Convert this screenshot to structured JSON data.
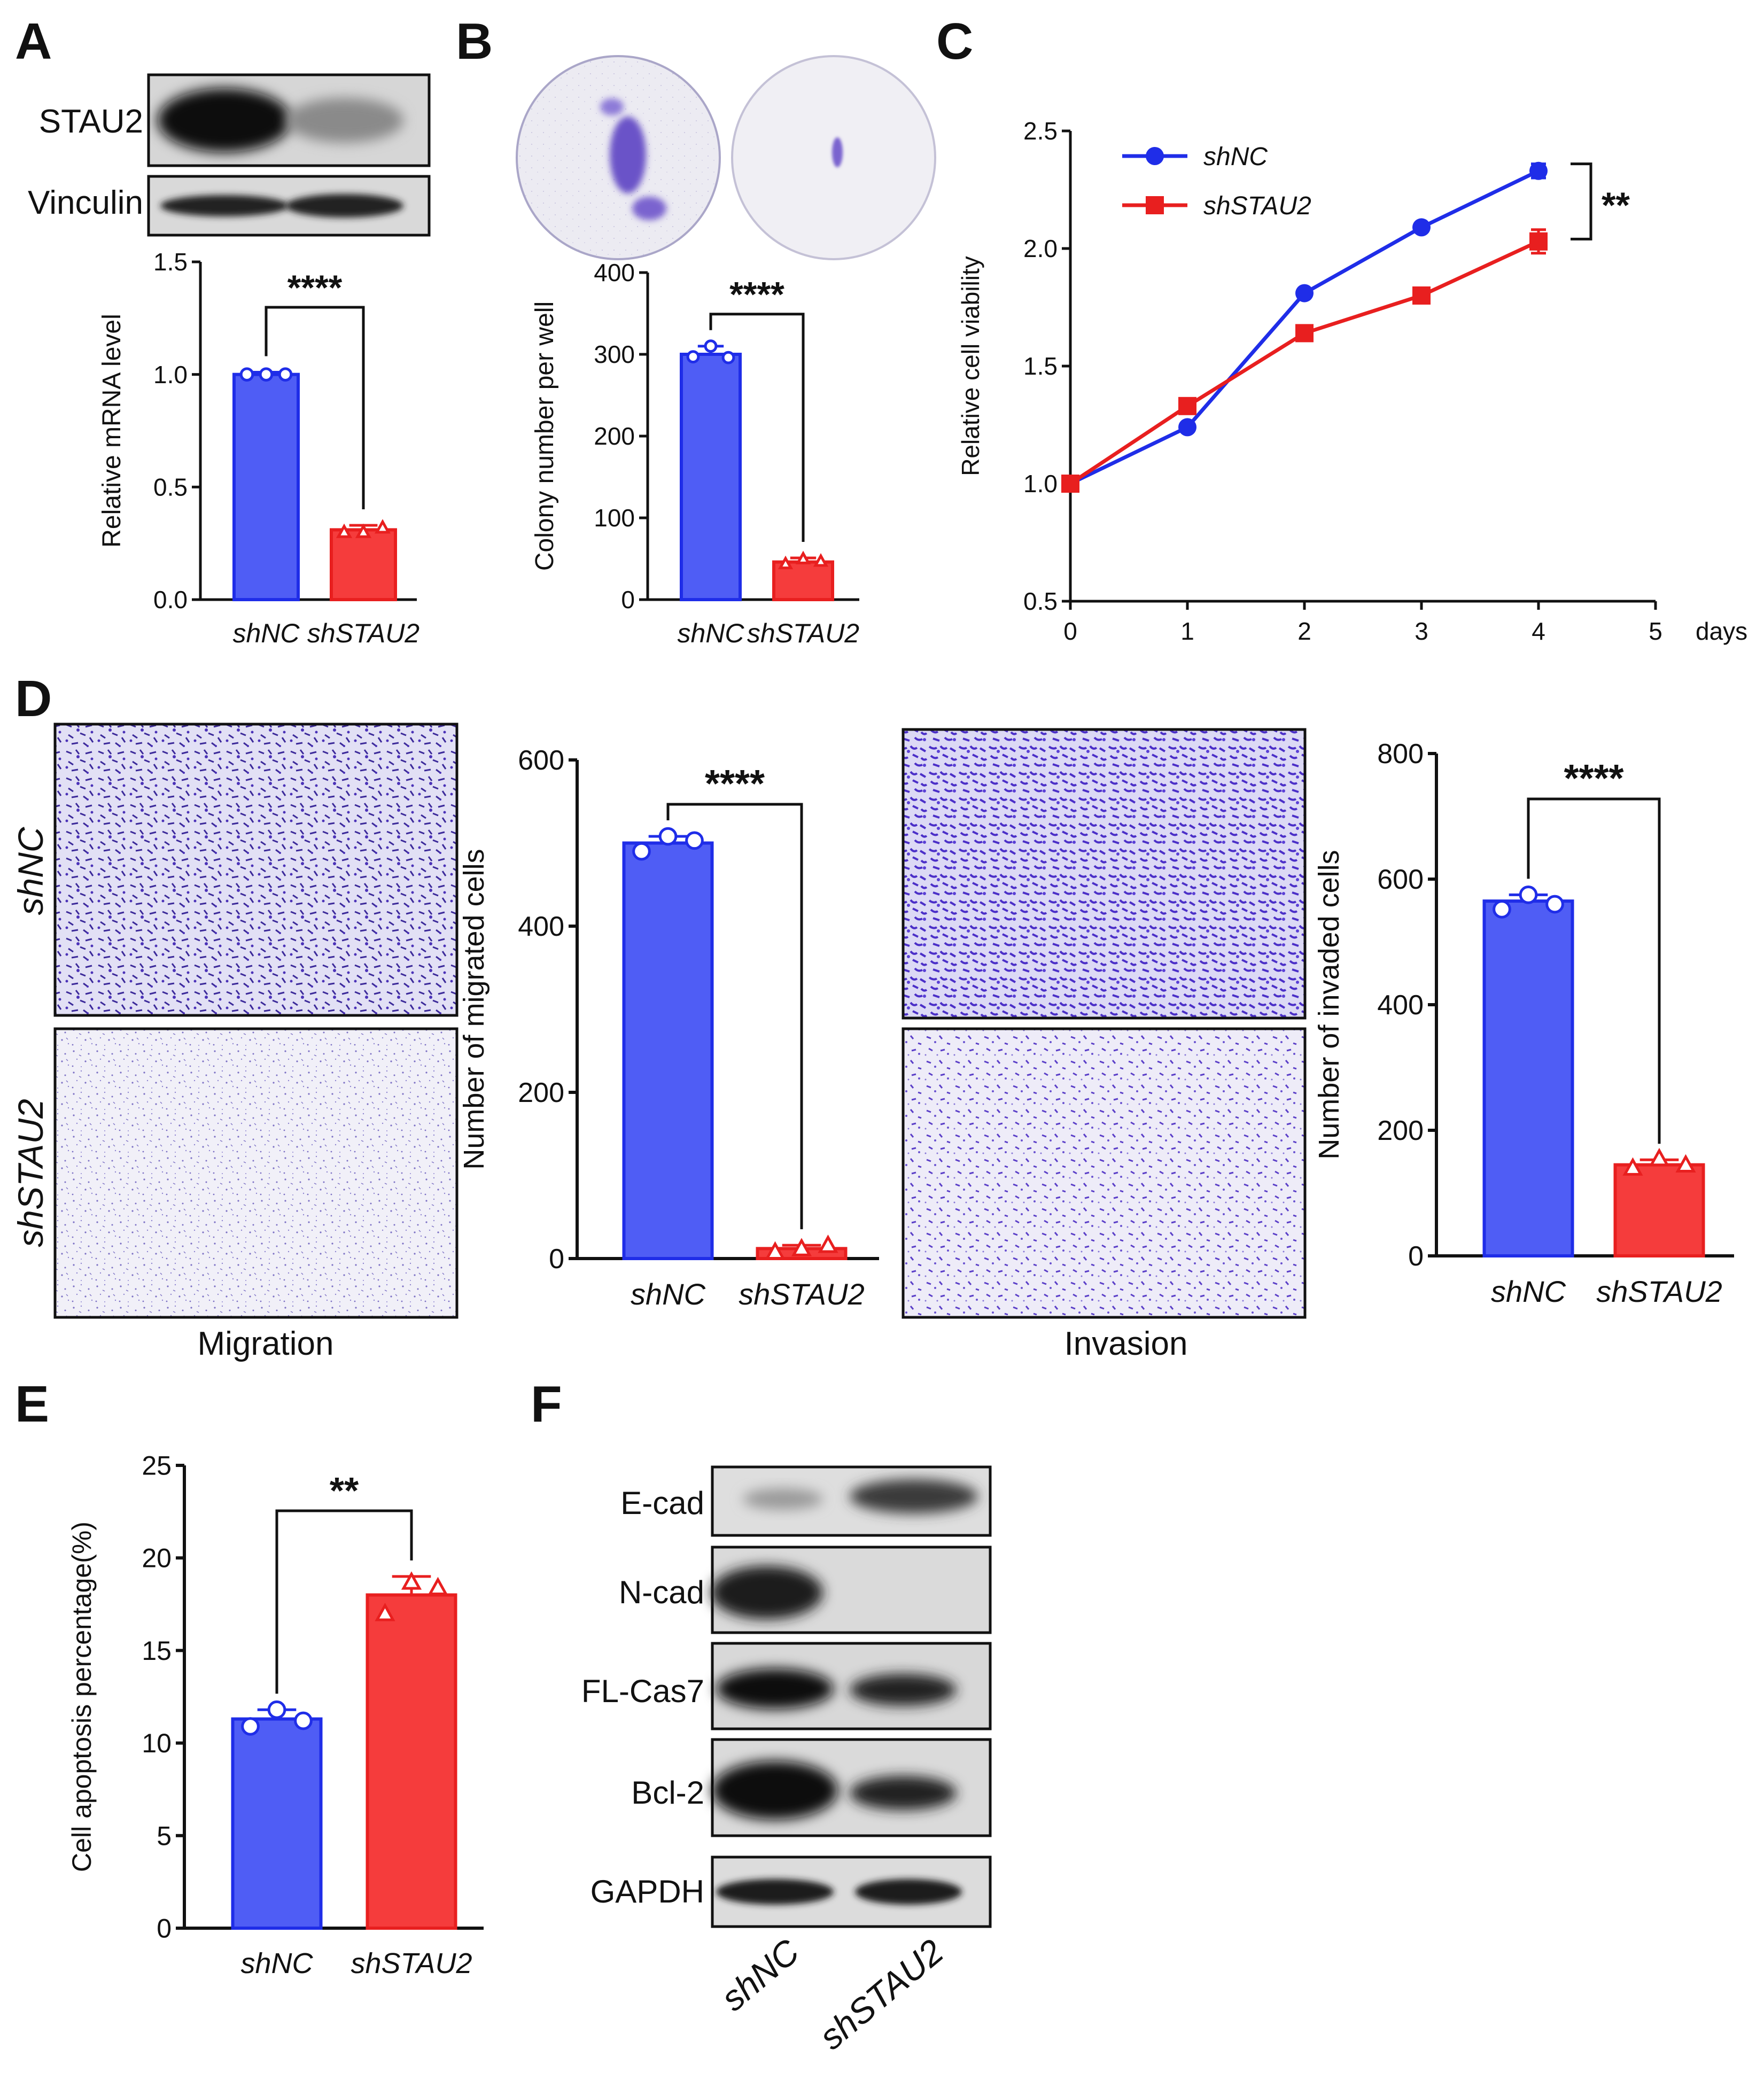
{
  "colors": {
    "shNC": "#4f5df5",
    "shSTAU2": "#f53c3c",
    "shNC_line": "#1f2de8",
    "shSTAU2_line": "#e81f1f",
    "stain": "#5a3fc0"
  },
  "panels": {
    "A": {
      "letter": "A",
      "blot_labels": [
        "STAU2",
        "Vinculin"
      ]
    },
    "B": {
      "letter": "B"
    },
    "C": {
      "letter": "C"
    },
    "D": {
      "letter": "D",
      "row_labels": [
        "shNC",
        "shSTAU2"
      ],
      "image_labels": [
        "Migration",
        "Invasion"
      ]
    },
    "E": {
      "letter": "E"
    },
    "F": {
      "letter": "F",
      "blot_labels": [
        "E-cad",
        "N-cad",
        "FL-Cas7",
        "Bcl-2",
        "GAPDH"
      ],
      "lane_labels": [
        "shNC",
        "shSTAU2"
      ]
    }
  },
  "chart_data": [
    {
      "id": "A",
      "type": "bar",
      "ylabel": "Relative mRNA level",
      "categories": [
        "shNC",
        "shSTAU2"
      ],
      "values": [
        1.0,
        0.31
      ],
      "errors": [
        0.01,
        0.02
      ],
      "points": [
        [
          1.0,
          1.0,
          1.0
        ],
        [
          0.3,
          0.3,
          0.32
        ]
      ],
      "markers": [
        "circle",
        "triangle"
      ],
      "ylim": [
        0,
        1.5
      ],
      "yticks": [
        "0.0",
        "0.5",
        "1.0",
        "1.5"
      ],
      "significance": "****"
    },
    {
      "id": "B",
      "type": "bar",
      "ylabel": "Colony number per well",
      "categories": [
        "shNC",
        "shSTAU2"
      ],
      "values": [
        300,
        46
      ],
      "errors": [
        10,
        5
      ],
      "points": [
        [
          297,
          310,
          296
        ],
        [
          44,
          50,
          47
        ]
      ],
      "markers": [
        "circle",
        "triangle"
      ],
      "ylim": [
        0,
        400
      ],
      "yticks": [
        "0",
        "100",
        "200",
        "300",
        "400"
      ],
      "significance": "****"
    },
    {
      "id": "C",
      "type": "line",
      "ylabel": "Relative cell viability",
      "xlabel": "days",
      "x": [
        0,
        1,
        2,
        3,
        4
      ],
      "series": [
        {
          "name": "shNC",
          "values": [
            1.0,
            1.24,
            1.81,
            2.09,
            2.33
          ],
          "errors": [
            0.01,
            0.01,
            0.01,
            0.01,
            0.03
          ],
          "marker": "circle"
        },
        {
          "name": "shSTAU2",
          "values": [
            1.0,
            1.33,
            1.64,
            1.8,
            2.03
          ],
          "errors": [
            0.01,
            0.01,
            0.01,
            0.01,
            0.05
          ],
          "marker": "square"
        }
      ],
      "xlim": [
        0,
        5
      ],
      "xticks": [
        "0",
        "1",
        "2",
        "3",
        "4",
        "5"
      ],
      "ylim": [
        0.5,
        2.5
      ],
      "yticks": [
        "0.5",
        "1.0",
        "1.5",
        "2.0",
        "2.5"
      ],
      "significance": "**",
      "legend": "top-left"
    },
    {
      "id": "D1",
      "type": "bar",
      "ylabel": "Number of migrated cells",
      "categories": [
        "shNC",
        "shSTAU2"
      ],
      "values": [
        500,
        12
      ],
      "errors": [
        8,
        4
      ],
      "points": [
        [
          490,
          508,
          503
        ],
        [
          8,
          12,
          16
        ]
      ],
      "markers": [
        "circle",
        "triangle"
      ],
      "ylim": [
        0,
        600
      ],
      "yticks": [
        "0",
        "200",
        "400",
        "600"
      ],
      "significance": "****"
    },
    {
      "id": "D2",
      "type": "bar",
      "ylabel": "Number of invaded cells",
      "categories": [
        "shNC",
        "shSTAU2"
      ],
      "values": [
        565,
        145
      ],
      "errors": [
        10,
        8
      ],
      "points": [
        [
          552,
          575,
          560
        ],
        [
          140,
          155,
          145
        ]
      ],
      "markers": [
        "circle",
        "triangle"
      ],
      "ylim": [
        0,
        800
      ],
      "yticks": [
        "0",
        "200",
        "400",
        "600",
        "800"
      ],
      "significance": "****"
    },
    {
      "id": "E",
      "type": "bar",
      "ylabel": "Cell apoptosis percentage(%)",
      "categories": [
        "shNC",
        "shSTAU2"
      ],
      "values": [
        11.3,
        18.0
      ],
      "errors": [
        0.5,
        1.0
      ],
      "points": [
        [
          10.9,
          11.8,
          11.2
        ],
        [
          17.0,
          18.7,
          18.4
        ]
      ],
      "markers": [
        "circle",
        "triangle"
      ],
      "ylim": [
        0,
        25
      ],
      "yticks": [
        "0",
        "5",
        "10",
        "15",
        "20",
        "25"
      ],
      "significance": "**"
    }
  ]
}
